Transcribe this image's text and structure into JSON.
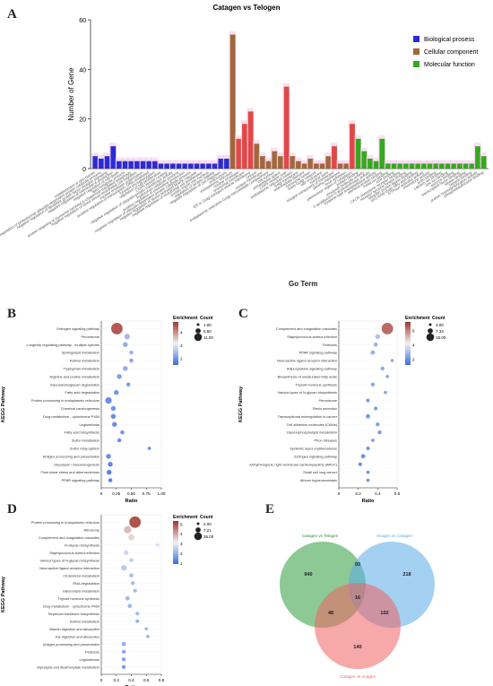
{
  "panels": {
    "a": "A",
    "b": "B",
    "c": "C",
    "d": "D",
    "e": "E"
  },
  "go_term_label": "Go Term",
  "colors": {
    "bp": "#2b2bd4",
    "cc": "#a0673a",
    "mf": "#36a820",
    "cc_red": "#e04848",
    "halo": "#f4c4e6",
    "enrich_high": "#a3332c",
    "enrich_mid": "#f2f2f2",
    "enrich_low": "#3b6fe0",
    "venn_green": "#2f9c3c",
    "venn_blue": "#59a9e8",
    "venn_red": "#f06060"
  },
  "chart_data": [
    {
      "type": "bar",
      "id": "go",
      "title": "Catagen vs Telogen",
      "ylabel": "Number of Gene",
      "ylim": [
        0,
        60
      ],
      "yticks": [
        0,
        20,
        40,
        60
      ],
      "legend_position": "top-right",
      "series": [
        {
          "name": "Biological prosess",
          "color_key": "bp",
          "values": [
            5,
            4,
            5,
            9,
            3,
            3,
            3,
            3,
            3,
            3,
            3,
            2,
            2,
            2,
            2,
            2,
            2,
            2,
            2,
            2,
            2,
            4,
            4
          ]
        },
        {
          "name": "Cellular component",
          "color_key": "cc",
          "values": [
            54,
            12,
            18,
            23,
            10,
            5,
            3,
            7,
            5,
            33,
            5,
            3,
            2,
            4,
            2,
            2,
            5,
            9,
            2,
            2,
            18
          ]
        },
        {
          "name": "Molecular function",
          "color_key": "mf",
          "values": [
            12,
            7,
            4,
            3,
            12,
            2,
            2,
            2,
            2,
            2,
            2,
            2,
            2,
            2,
            2,
            2,
            2,
            2,
            2,
            2,
            9,
            5
          ]
        }
      ],
      "categories": {
        "bp": [
          "establishment of skin barrier",
          "negative regulation of proteasomal ubiquitin-dependent protein catabolic process",
          "negative regulation of fibroblast growth factor receptor signaling",
          "negative regulation of interleukin-6 production",
          "negative regulation of cell death",
          "lipid metabolic process",
          "protein targeting to lysosome involved in chaperone-mediated autophagy",
          "negative regulation of blood vessel endothelial cell migration",
          "nuclear envelope organization",
          "positive regulation of transcription, DNA-templated",
          "tyrosine phosphorylation",
          "regulation of cell proliferation",
          "COPII vesicle coating",
          "negative regulation of ubiquitin-protein transferase activity",
          "hyaluronan catabolic process",
          "positive regulation of chemokine production",
          "negative regulation of ubiquitin-dependent protein catabolic process",
          "negative regulation of stress-activated MAPK cascade",
          "negative regulation of endothelial cell proliferation",
          "protein import into nucleus",
          "regulation of protein stability",
          "negative regulation of cell migration",
          "endocytosis"
        ],
        "cc": [
          "endoplasmic reticulum",
          "nuclear envelope",
          "lysosomal membrane",
          "ER to Golgi transport vesicle membrane",
          "cytosol",
          "nuclear membrane",
          "endoplasmic reticulum-Golgi intermediate compartment",
          "cell surface",
          "extracellular space",
          "COPII vesicle coat",
          "endoplasmic reticulum lumen",
          "Golgi membrane",
          "intermediate filament",
          "lysosomal lumen",
          "trans-Golgi network",
          "late endosome",
          "nuclear pore",
          "integral component of membrane",
          "plasma membrane",
          "focal adhesion",
          "perinuclear region of cytoplasm"
        ],
        "mf": [
          "protein binding",
          "structural molecule activity",
          "2-acylglycerol O-acyltransferase activity",
          "cysteine-type endopeptidase activity",
          "identical protein binding",
          "metal ion binding",
          "ATP binding",
          "CXCR chemokine receptor binding",
          "receptor tyrosine kinase binding",
          "ubiquitin protein ligase binding",
          "very-long-chain fatty acid binding",
          "GTPase activator activity",
          "chemokine activity",
          "actin binding",
          "calcium ion binding",
          "zinc ion binding",
          "enzyme binding",
          "transcription factor binding",
          "kinase binding",
          "heparin binding",
          "protein homodimerization activity",
          "phosphatidylinositol binding"
        ]
      }
    },
    {
      "type": "scatter",
      "id": "kegg_b",
      "xlabel": "Ratio",
      "ylabel": "KEGG Pathway",
      "xlim": [
        0,
        1
      ],
      "xticks": [
        "0",
        "0.25",
        "0.50",
        "0.75",
        "1.00"
      ],
      "xtick_values": [
        0,
        0.25,
        0.5,
        0.75,
        1.0
      ],
      "legend_color_title": "Enrichment",
      "legend_size_title": "Count",
      "color_ticks": [
        2,
        3,
        4
      ],
      "color_range": [
        1.5,
        4.8
      ],
      "size_ticks": [
        "1.00",
        "5.50",
        "11.00"
      ],
      "size_range": [
        1,
        11
      ],
      "pathways": [
        "Estrogen signaling pathway",
        "Peroxisome",
        "Longevity regulating pathway - multiple species",
        "Sphingolipid metabolism",
        "Retinol metabolism",
        "Tryptophan metabolism",
        "Arginine and proline metabolism",
        "Glycosaminoglycan degradation",
        "Fatty acid degradation",
        "Protein processing in endoplasmic reticulum",
        "Chemical carcinogenesis",
        "Drug metabolism - cytochrome P450",
        "Legionellosis",
        "Fatty acid biosynthesis",
        "Sulfur metabolism",
        "Sulfur relay system",
        "Antigen processing and presentation",
        "Glycolysis / Gluconeogenesis",
        "Fluid shear stress and atherosclerosis",
        "PPAR signaling pathway"
      ],
      "ratio": [
        0.26,
        0.43,
        0.4,
        0.5,
        0.5,
        0.4,
        0.3,
        0.45,
        0.25,
        0.12,
        0.2,
        0.2,
        0.22,
        0.35,
        0.3,
        0.8,
        0.12,
        0.15,
        0.13,
        0.15
      ],
      "count": [
        11,
        4,
        3,
        2,
        2,
        3,
        3,
        2,
        3,
        5,
        3,
        3,
        3,
        2,
        2,
        1,
        3,
        3,
        3,
        2
      ],
      "enrichment": [
        4.6,
        2.4,
        2.2,
        2.3,
        2.1,
        2.2,
        2.0,
        2.0,
        1.9,
        1.8,
        1.9,
        1.8,
        1.8,
        1.9,
        1.8,
        1.8,
        1.8,
        1.7,
        1.6,
        1.6
      ]
    },
    {
      "type": "scatter",
      "id": "kegg_c",
      "xlabel": "Ratio",
      "ylabel": "KEGG Pathway",
      "xlim": [
        0,
        0.6
      ],
      "xticks": [
        "0",
        "0.2",
        "0.4",
        "0.6"
      ],
      "xtick_values": [
        0,
        0.2,
        0.4,
        0.6
      ],
      "legend_color_title": "Enrichment",
      "legend_size_title": "Count",
      "color_ticks": [
        2,
        4,
        6
      ],
      "color_range": [
        1.2,
        7.2
      ],
      "size_ticks": [
        "3.00",
        "7.33",
        "18.00"
      ],
      "size_range": [
        3,
        18
      ],
      "pathways": [
        "Complement and coagulation cascades",
        "Staphylococcus aureus infection",
        "Pertussis",
        "PPAR signaling pathway",
        "Neuroactive ligand-receptor interaction",
        "Adipocytokine signaling pathway",
        "Biosynthesis of unsaturated fatty acids",
        "Thyroid hormone synthesis",
        "Various types of N-glycan biosynthesis",
        "Peroxisome",
        "Renin secretion",
        "Transcriptional misregulation in cancer",
        "Cell adhesion molecules (CAMs)",
        "Glycerophospholipid metabolism",
        "Prion diseases",
        "Systemic lupus erythematosus",
        "Estrogen signaling pathway",
        "Arrhythmogenic right ventricular cardiomyopathy (ARVC)",
        "Small cell lung cancer",
        "African trypanosomiasis"
      ],
      "ratio": [
        0.5,
        0.4,
        0.38,
        0.35,
        0.55,
        0.45,
        0.5,
        0.35,
        0.48,
        0.3,
        0.38,
        0.3,
        0.4,
        0.42,
        0.35,
        0.3,
        0.25,
        0.22,
        0.3,
        0.3
      ],
      "count": [
        18,
        6,
        5,
        5,
        3,
        4,
        3,
        4,
        3,
        4,
        4,
        5,
        4,
        4,
        3,
        4,
        5,
        4,
        3,
        3
      ],
      "enrichment": [
        6.5,
        3.0,
        2.7,
        2.6,
        2.4,
        2.3,
        2.3,
        2.2,
        2.2,
        2.1,
        2.1,
        2.0,
        2.0,
        2.0,
        1.9,
        1.9,
        1.8,
        1.8,
        1.8,
        1.8
      ]
    },
    {
      "type": "scatter",
      "id": "kegg_d",
      "xlabel": "Ratio",
      "ylabel": "KEGG Pathway",
      "xlim": [
        0,
        0.8
      ],
      "xticks": [
        "0",
        "0.2",
        "0.4",
        "0.6",
        "0.8"
      ],
      "xtick_values": [
        0,
        0.2,
        0.4,
        0.6,
        0.8
      ],
      "legend_color_title": "Enrichment",
      "legend_size_title": "Count",
      "color_ticks": [
        1,
        2,
        3,
        4,
        5
      ],
      "color_range": [
        0.9,
        5.3
      ],
      "size_ticks": [
        "2.00",
        "7.21",
        "26.00"
      ],
      "size_range": [
        2,
        26
      ],
      "pathways": [
        "Protein processing in endoplasmic reticulum",
        "Ribosome",
        "Complement and coagulation cascades",
        "N-Glycan biosynthesis",
        "Staphylococcus aureus infection",
        "Various types of N-glycan biosynthesis",
        "Neuroactive ligand-receptor interaction",
        "Cholesterol metabolism",
        "RNA degradation",
        "Glycerolipid metabolism",
        "Thyroid hormone synthesis",
        "Drug metabolism - cytochrome P450",
        "Terpenoid backbone biosynthesis",
        "Retinol metabolism",
        "Vitamin digestion and absorption",
        "Fat digestion and absorption",
        "Antigen processing and presentation",
        "Pertussis",
        "Legionellosis",
        "Glycolysis and dicarboxylate metabolism"
      ],
      "ratio": [
        0.45,
        0.35,
        0.4,
        0.75,
        0.33,
        0.4,
        0.3,
        0.4,
        0.42,
        0.45,
        0.35,
        0.38,
        0.48,
        0.48,
        0.6,
        0.62,
        0.3,
        0.3,
        0.3,
        0.3
      ],
      "count": [
        26,
        14,
        10,
        4,
        6,
        5,
        8,
        5,
        4,
        4,
        5,
        5,
        3,
        3,
        2,
        2,
        5,
        4,
        4,
        4
      ],
      "enrichment": [
        5.1,
        3.8,
        3.5,
        2.8,
        2.6,
        2.5,
        2.3,
        2.2,
        2.1,
        2.1,
        2.0,
        2.0,
        2.0,
        1.9,
        1.9,
        1.9,
        1.8,
        1.7,
        1.6,
        1.5
      ]
    },
    {
      "type": "venn",
      "id": "venn",
      "sets": [
        "Catagen vs Telogen",
        "Anagen vs Catagen",
        "Catagen vs Anagen"
      ],
      "regions": {
        "a_only": 940,
        "b_only": 218,
        "c_only": 140,
        "ab": 93,
        "ac": 48,
        "bc": 102,
        "abc": 16
      }
    }
  ]
}
